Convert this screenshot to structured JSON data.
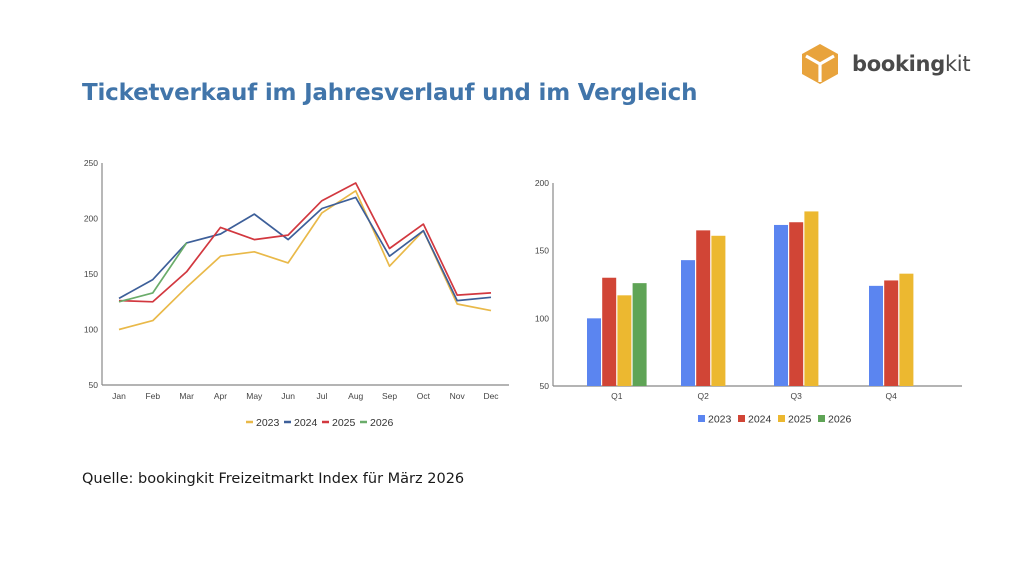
{
  "header": {
    "title": "Ticketverkauf im Jahresverlauf und im Vergleich",
    "logo_bold": "booking",
    "logo_light": "kit",
    "logo_color": "#e8a33c"
  },
  "footer": {
    "source": "Quelle: bookingkit Freizeitmarkt Index für März 2026"
  },
  "chart_data": [
    {
      "type": "line",
      "title": "",
      "xlabel": "",
      "ylabel": "",
      "categories": [
        "Jan",
        "Feb",
        "Mar",
        "Apr",
        "May",
        "Jun",
        "Jul",
        "Aug",
        "Sep",
        "Oct",
        "Nov",
        "Dec"
      ],
      "ylim": [
        50,
        250
      ],
      "yticks": [
        50,
        100,
        150,
        200,
        250
      ],
      "grid": false,
      "legend_position": "bottom",
      "series": [
        {
          "name": "2023",
          "color": "#e9b949",
          "values": [
            100,
            108,
            138,
            166,
            170,
            160,
            205,
            225,
            157,
            189,
            123,
            117
          ]
        },
        {
          "name": "2024",
          "color": "#3d5f99",
          "values": [
            128,
            145,
            178,
            186,
            204,
            181,
            209,
            219,
            166,
            189,
            126,
            129
          ]
        },
        {
          "name": "2025",
          "color": "#d2383f",
          "values": [
            126,
            125,
            152,
            192,
            181,
            185,
            216,
            232,
            173,
            195,
            131,
            133
          ]
        },
        {
          "name": "2026",
          "color": "#6aac6a",
          "values": [
            125,
            133,
            178,
            null,
            null,
            null,
            null,
            null,
            null,
            null,
            null,
            null
          ]
        }
      ]
    },
    {
      "type": "bar",
      "title": "",
      "xlabel": "",
      "ylabel": "",
      "categories": [
        "Q1",
        "Q2",
        "Q3",
        "Q4"
      ],
      "ylim": [
        50,
        200
      ],
      "yticks": [
        50,
        100,
        150,
        200
      ],
      "grid": false,
      "legend_position": "bottom",
      "series": [
        {
          "name": "2023",
          "color": "#5b85f0",
          "values": [
            100,
            143,
            169,
            124
          ]
        },
        {
          "name": "2024",
          "color": "#d14536",
          "values": [
            130,
            165,
            171,
            128
          ]
        },
        {
          "name": "2025",
          "color": "#ecb830",
          "values": [
            117,
            161,
            179,
            133
          ]
        },
        {
          "name": "2026",
          "color": "#5fa456",
          "values": [
            126,
            null,
            null,
            null
          ]
        }
      ]
    }
  ]
}
